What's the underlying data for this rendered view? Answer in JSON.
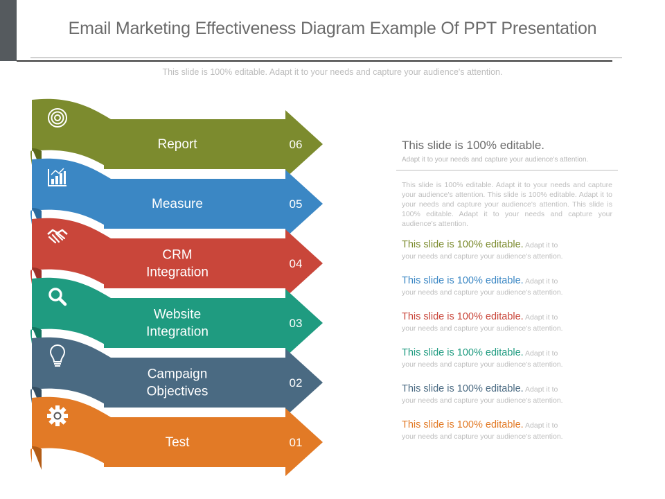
{
  "slide": {
    "title": "Email Marketing Effectiveness Diagram Example Of PPT Presentation",
    "subtitle": "This slide is 100% editable. Adapt it to your needs and capture your audience's attention."
  },
  "colors": {
    "corner": "#555a5e"
  },
  "banners": [
    {
      "label": [
        "Report"
      ],
      "number": "06",
      "color": "#7c8b2e",
      "dark": "#5c6a1c",
      "icon": "target-icon"
    },
    {
      "label": [
        "Measure"
      ],
      "number": "05",
      "color": "#3b87c4",
      "dark": "#2a6a9e",
      "icon": "bar-chart-icon"
    },
    {
      "label": [
        "CRM",
        "Integration"
      ],
      "number": "04",
      "color": "#c9463a",
      "dark": "#9c3128",
      "icon": "handshake-icon"
    },
    {
      "label": [
        "Website",
        "Integration"
      ],
      "number": "03",
      "color": "#1f9b80",
      "dark": "#157560",
      "icon": "search-icon"
    },
    {
      "label": [
        "Campaign",
        "Objectives"
      ],
      "number": "02",
      "color": "#4a6a82",
      "dark": "#344e62",
      "icon": "lightbulb-icon"
    },
    {
      "label": [
        "Test"
      ],
      "number": "01",
      "color": "#e27a26",
      "dark": "#b35c16",
      "icon": "gear-icon"
    }
  ],
  "right_panel": {
    "heading": "This slide is 100% editable.",
    "subheading": "Adapt it to your needs and capture your audience's attention.",
    "paragraph": "This slide is 100% editable. Adapt it to your needs and capture your audience's attention. This slide is 100% editable. Adapt it to your needs and capture your audience's attention. This slide is 100% editable. Adapt it to your needs and capture your audience's attention.",
    "items": [
      {
        "head": "This slide is 100% editable.",
        "body1": " Adapt it to",
        "body2": "your needs and capture your audience's attention.",
        "color": "#7c8b2e"
      },
      {
        "head": "This slide is 100% editable.",
        "body1": " Adapt it to",
        "body2": "your needs and capture your audience's attention.",
        "color": "#3b87c4"
      },
      {
        "head": "This slide is 100% editable.",
        "body1": " Adapt it to",
        "body2": "your needs and capture your audience's attention.",
        "color": "#c9463a"
      },
      {
        "head": "This slide is 100% editable.",
        "body1": " Adapt it to",
        "body2": "your needs and capture your audience's attention.",
        "color": "#1f9b80"
      },
      {
        "head": "This slide is 100% editable.",
        "body1": " Adapt it to",
        "body2": "your needs and capture your audience's attention.",
        "color": "#4a6a82"
      },
      {
        "head": "This slide is 100% editable.",
        "body1": " Adapt it to",
        "body2": "your needs and capture your audience's attention.",
        "color": "#e27a26"
      }
    ]
  }
}
